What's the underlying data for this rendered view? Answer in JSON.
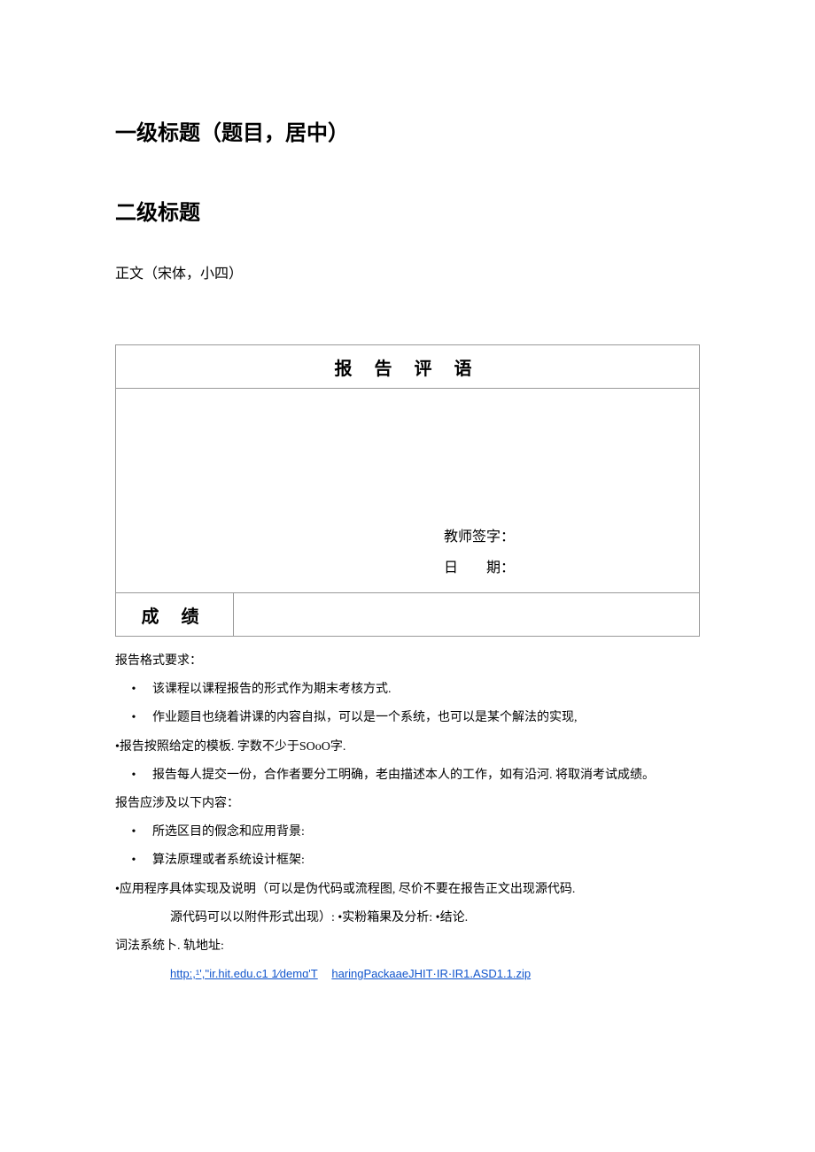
{
  "heading1": "一级标题（题目，居中）",
  "heading2": "二级标题",
  "bodyText": "正文（宋体，小四）",
  "table": {
    "header": "报 告 评 语",
    "teacherSig": "教师签字：",
    "date": "日　　期：",
    "gradeLabel": "成 绩"
  },
  "req": {
    "title": "报告格式要求：",
    "b1": "该课程以课程报告的形式作为期末考核方式.",
    "b2": "作业题目也绕着讲课的内容自拟，可以是一个系统，也可以是某个解法的实现,",
    "p3": "•报告按照给定的模板. 字数不少于SOoO字.",
    "b4": "报告每人提交一份，合作者要分工明确，老由描述本人的工作，如有沿河. 将取消考试成绩。",
    "sub": "报告应涉及以下内容：",
    "b5": "所选区目的假念和应用背景:",
    "b6": "算法原理或者系统设计框架:",
    "p7": "•应用程序具体实现及说明（可以是伪代码或流程图, 尽价不要在报告正文出现源代码.",
    "p8": "源代码可以以附件形式出现）: •实粉箱果及分析: •结论.",
    "footer": "词法系统卜. 轨地址:",
    "link1": "http:,¹','ʹir.hit.edu.c1 1⁄demɑ'T",
    "link2": "haringPackaaeJHIT·IR·IR1.ASD1.1.zip"
  },
  "style": {
    "linkColor": "#1155cc"
  }
}
